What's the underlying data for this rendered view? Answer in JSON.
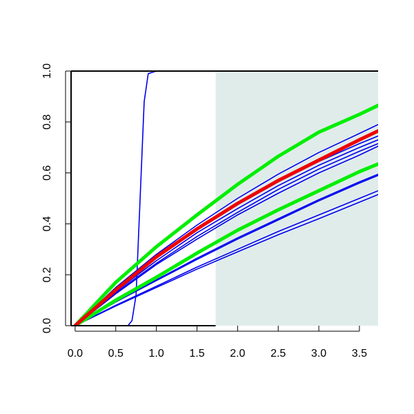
{
  "chart_data": {
    "type": "line",
    "title": "",
    "xlabel": "",
    "ylabel": "",
    "xlim": [
      -0.05,
      3.73
    ],
    "ylim": [
      0,
      1
    ],
    "x_ticks": [
      "0.0",
      "0.5",
      "1.0",
      "1.5",
      "2.0",
      "2.5",
      "3.0",
      "3.5"
    ],
    "y_ticks": [
      "0.0",
      "0.2",
      "0.4",
      "0.6",
      "0.8",
      "1.0"
    ],
    "grid": false,
    "shaded_region": {
      "x_start": 1.73,
      "x_end": 3.73,
      "color": "#e0ecea"
    },
    "colors": {
      "blue": "#0000ee",
      "green": "#00ee00",
      "red": "#ee0000"
    },
    "series": [
      {
        "color": "blue",
        "kind": "step",
        "x": [
          0.0,
          0.65,
          0.7,
          0.75,
          0.8,
          0.85,
          0.9,
          1.0,
          3.73
        ],
        "y": [
          0.0,
          0.0,
          0.02,
          0.12,
          0.5,
          0.88,
          0.99,
          1.0,
          1.0
        ]
      },
      {
        "color": "green",
        "heavy": true,
        "x": [
          0.0,
          0.5,
          1.0,
          1.5,
          2.0,
          2.5,
          3.0,
          3.5,
          3.73
        ],
        "y": [
          0.0,
          0.17,
          0.31,
          0.435,
          0.555,
          0.665,
          0.76,
          0.83,
          0.865
        ]
      },
      {
        "color": "green",
        "heavy": true,
        "x": [
          0.0,
          0.5,
          1.0,
          1.5,
          2.0,
          2.5,
          3.0,
          3.5,
          3.73
        ],
        "y": [
          0.0,
          0.1,
          0.19,
          0.285,
          0.375,
          0.455,
          0.53,
          0.605,
          0.635
        ]
      },
      {
        "color": "red",
        "heavy": true,
        "x": [
          0.0,
          0.5,
          1.0,
          1.5,
          2.0,
          2.5,
          3.0,
          3.5,
          3.73
        ],
        "y": [
          0.0,
          0.14,
          0.27,
          0.38,
          0.48,
          0.57,
          0.65,
          0.73,
          0.765
        ]
      },
      {
        "color": "blue",
        "x": [
          0.0,
          0.5,
          1.0,
          1.5,
          2.0,
          2.5,
          3.0,
          3.5,
          3.73
        ],
        "y": [
          0.0,
          0.15,
          0.28,
          0.395,
          0.5,
          0.595,
          0.68,
          0.755,
          0.79
        ]
      },
      {
        "color": "blue",
        "x": [
          0.0,
          0.5,
          1.0,
          1.5,
          2.0,
          2.5,
          3.0,
          3.5,
          3.73
        ],
        "y": [
          0.0,
          0.14,
          0.265,
          0.375,
          0.475,
          0.565,
          0.645,
          0.715,
          0.745
        ]
      },
      {
        "color": "blue",
        "x": [
          0.0,
          0.5,
          1.0,
          1.5,
          2.0,
          2.5,
          3.0,
          3.5,
          3.73
        ],
        "y": [
          0.0,
          0.135,
          0.255,
          0.365,
          0.46,
          0.55,
          0.63,
          0.7,
          0.73
        ]
      },
      {
        "color": "blue",
        "x": [
          0.0,
          0.5,
          1.0,
          1.5,
          2.0,
          2.5,
          3.0,
          3.5,
          3.73
        ],
        "y": [
          0.0,
          0.13,
          0.245,
          0.35,
          0.445,
          0.535,
          0.615,
          0.685,
          0.715
        ]
      },
      {
        "color": "blue",
        "x": [
          0.0,
          0.5,
          1.0,
          1.5,
          2.0,
          2.5,
          3.0,
          3.5,
          3.73
        ],
        "y": [
          0.0,
          0.125,
          0.24,
          0.34,
          0.435,
          0.52,
          0.6,
          0.67,
          0.705
        ]
      },
      {
        "color": "blue",
        "x": [
          0.0,
          0.5,
          1.0,
          1.5,
          2.0,
          2.5,
          3.0,
          3.5,
          3.73
        ],
        "y": [
          0.0,
          0.095,
          0.18,
          0.265,
          0.345,
          0.42,
          0.495,
          0.565,
          0.595
        ]
      },
      {
        "color": "blue",
        "x": [
          0.0,
          0.5,
          1.0,
          1.5,
          2.0,
          2.5,
          3.0,
          3.5,
          3.73
        ],
        "y": [
          0.0,
          0.093,
          0.177,
          0.26,
          0.34,
          0.415,
          0.49,
          0.56,
          0.59
        ]
      },
      {
        "color": "blue",
        "x": [
          0.0,
          0.5,
          1.0,
          1.5,
          2.0,
          2.5,
          3.0,
          3.5,
          3.73
        ],
        "y": [
          0.0,
          0.08,
          0.155,
          0.23,
          0.3,
          0.37,
          0.435,
          0.5,
          0.53
        ]
      },
      {
        "color": "blue",
        "x": [
          0.0,
          0.5,
          1.0,
          1.5,
          2.0,
          2.5,
          3.0,
          3.5,
          3.73
        ],
        "y": [
          0.0,
          0.077,
          0.15,
          0.222,
          0.29,
          0.357,
          0.42,
          0.485,
          0.515
        ]
      }
    ]
  }
}
